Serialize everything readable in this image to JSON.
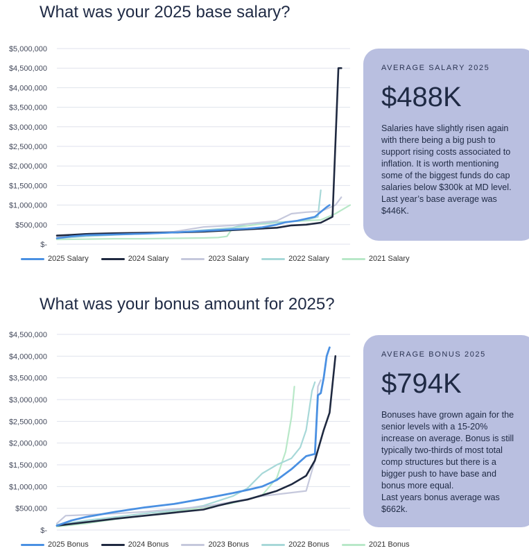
{
  "colors": {
    "s2025": "#4a90e2",
    "s2024": "#1f2940",
    "s2023": "#c5c8dc",
    "s2022": "#a7d8d8",
    "s2021": "#b8e8c8",
    "card": "#b9bfe0"
  },
  "sections": [
    {
      "title": "What was your 2025 base salary?",
      "card": {
        "label": "AVERAGE SALARY 2025",
        "value": "$488K",
        "text": "Salaries have slightly risen again with there being a big push to support rising costs associated to inflation.  It is worth mentioning some of the biggest funds do cap salaries below $300k at MD level.\nLast year’s base average was $446K."
      }
    },
    {
      "title": "What was your bonus amount for 2025?",
      "card": {
        "label": "AVERAGE BONUS 2025",
        "value": "$794K",
        "text": "Bonuses have grown again for the senior levels with a 15-20% increase on average.  Bonus is still typically two-thirds of most total comp structures but there is a bigger push to have base and bonus more equal.\nLast years bonus average was $662k."
      }
    }
  ],
  "chart_data": [
    {
      "type": "line",
      "title": "",
      "ylim": [
        0,
        5000000
      ],
      "yticks": [
        0,
        500000,
        1000000,
        1500000,
        2000000,
        2500000,
        3000000,
        3500000,
        4000000,
        4500000,
        5000000
      ],
      "ytick_labels": [
        "$-",
        "$500,000",
        "$1,000,000",
        "$1,500,000",
        "$2,000,000",
        "$2,500,000",
        "$3,000,000",
        "$3,500,000",
        "$4,000,000",
        "$4,500,000",
        "$5,000,000"
      ],
      "grid": true,
      "legend": "bottom",
      "series": [
        {
          "name": "2025 Salary",
          "color_key": "s2025",
          "width": 2.6,
          "x": [
            0,
            5,
            10,
            20,
            30,
            40,
            50,
            55,
            60,
            65,
            70,
            75,
            78,
            82,
            88,
            92,
            93
          ],
          "values": [
            150000,
            200000,
            230000,
            250000,
            270000,
            300000,
            340000,
            360000,
            380000,
            400000,
            430000,
            500000,
            560000,
            600000,
            700000,
            950000,
            1000000
          ]
        },
        {
          "name": "2024 Salary",
          "color_key": "s2024",
          "width": 2.6,
          "x": [
            0,
            5,
            10,
            20,
            30,
            40,
            50,
            60,
            70,
            75,
            80,
            85,
            90,
            94,
            96,
            97
          ],
          "values": [
            220000,
            240000,
            260000,
            280000,
            290000,
            300000,
            320000,
            360000,
            400000,
            420000,
            480000,
            500000,
            550000,
            700000,
            4500000,
            4500000
          ]
        },
        {
          "name": "2023 Salary",
          "color_key": "s2023",
          "width": 2.2,
          "x": [
            0,
            5,
            10,
            20,
            30,
            40,
            50,
            60,
            70,
            75,
            80,
            85,
            90,
            95,
            97
          ],
          "values": [
            180000,
            220000,
            250000,
            270000,
            290000,
            320000,
            440000,
            480000,
            560000,
            600000,
            780000,
            820000,
            840000,
            1000000,
            1200000
          ]
        },
        {
          "name": "2022 Salary",
          "color_key": "s2022",
          "width": 2.2,
          "x": [
            0,
            10,
            20,
            30,
            40,
            50,
            60,
            65,
            70,
            75,
            80,
            85,
            89,
            90
          ],
          "values": [
            150000,
            200000,
            240000,
            270000,
            300000,
            360000,
            420000,
            520000,
            540000,
            560000,
            580000,
            620000,
            700000,
            1380000
          ]
        },
        {
          "name": "2021 Salary",
          "color_key": "s2021",
          "width": 2.2,
          "x": [
            0,
            10,
            20,
            30,
            40,
            50,
            55,
            58,
            60,
            70,
            80,
            90,
            95,
            100
          ],
          "values": [
            120000,
            130000,
            140000,
            140000,
            150000,
            160000,
            170000,
            200000,
            420000,
            520000,
            580000,
            620000,
            780000,
            1000000
          ]
        }
      ]
    },
    {
      "type": "line",
      "title": "",
      "ylim": [
        0,
        4500000
      ],
      "yticks": [
        0,
        500000,
        1000000,
        1500000,
        2000000,
        2500000,
        3000000,
        3500000,
        4000000,
        4500000
      ],
      "ytick_labels": [
        "$-",
        "$500,000",
        "$1,000,000",
        "$1,500,000",
        "$2,000,000",
        "$2,500,000",
        "$3,000,000",
        "$3,500,000",
        "$4,000,000",
        "$4,500,000"
      ],
      "grid": true,
      "legend": "bottom",
      "series": [
        {
          "name": "2025 Bonus",
          "color_key": "s2025",
          "width": 2.8,
          "x": [
            0,
            5,
            10,
            20,
            30,
            40,
            50,
            60,
            65,
            70,
            75,
            80,
            85,
            88,
            89,
            90,
            91,
            92,
            93
          ],
          "values": [
            100000,
            220000,
            300000,
            420000,
            520000,
            600000,
            720000,
            850000,
            920000,
            1000000,
            1150000,
            1400000,
            1700000,
            1750000,
            3100000,
            3150000,
            3500000,
            4000000,
            4200000
          ]
        },
        {
          "name": "2024 Bonus",
          "color_key": "s2024",
          "width": 2.6,
          "x": [
            0,
            10,
            20,
            30,
            40,
            50,
            55,
            60,
            65,
            70,
            75,
            80,
            85,
            88,
            91,
            93,
            95
          ],
          "values": [
            100000,
            180000,
            260000,
            330000,
            400000,
            470000,
            560000,
            640000,
            700000,
            800000,
            900000,
            1050000,
            1250000,
            1600000,
            2300000,
            2700000,
            4000000
          ]
        },
        {
          "name": "2023 Bonus",
          "color_key": "s2023",
          "width": 2.2,
          "x": [
            0,
            3,
            10,
            20,
            30,
            40,
            50,
            60,
            70,
            75,
            80,
            85,
            88,
            89,
            90
          ],
          "values": [
            150000,
            330000,
            350000,
            380000,
            420000,
            480000,
            540000,
            650000,
            780000,
            820000,
            860000,
            900000,
            1600000,
            3300000,
            3450000
          ]
        },
        {
          "name": "2022 Bonus",
          "color_key": "s2022",
          "width": 2.2,
          "x": [
            0,
            10,
            20,
            30,
            40,
            50,
            60,
            65,
            70,
            75,
            80,
            83,
            85,
            87,
            88
          ],
          "values": [
            120000,
            220000,
            300000,
            380000,
            450000,
            560000,
            780000,
            960000,
            1300000,
            1500000,
            1650000,
            1900000,
            2300000,
            3200000,
            3400000
          ]
        },
        {
          "name": "2021 Bonus",
          "color_key": "s2021",
          "width": 2.2,
          "x": [
            0,
            10,
            20,
            30,
            40,
            50,
            60,
            70,
            75,
            78,
            80,
            81
          ],
          "values": [
            80000,
            150000,
            250000,
            330000,
            420000,
            520000,
            620000,
            800000,
            1200000,
            1800000,
            2600000,
            3300000
          ]
        }
      ]
    }
  ]
}
